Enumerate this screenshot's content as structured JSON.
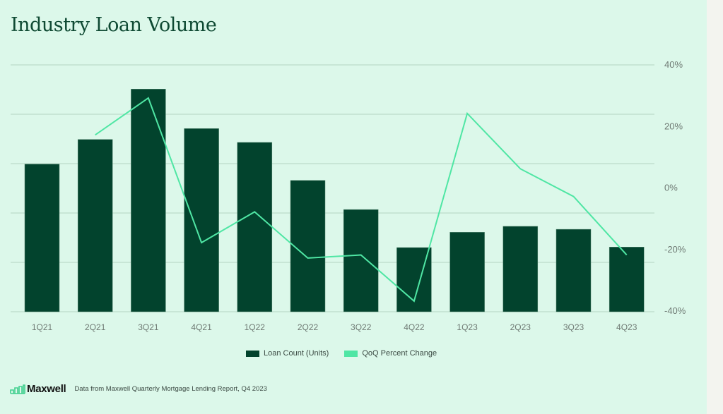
{
  "page": {
    "title": "Industry Loan Volume",
    "colors": {
      "panel_bg": "#dcf8ea",
      "bar": "#02432d",
      "line": "#4fe6a4",
      "grid": "#b3d4c2",
      "axis_text": "#6f7a74"
    }
  },
  "chart_data": {
    "type": "bar+line",
    "title": "Industry Loan Volume",
    "categories": [
      "1Q21",
      "2Q21",
      "3Q21",
      "4Q21",
      "1Q22",
      "2Q22",
      "3Q22",
      "4Q22",
      "1Q23",
      "2Q23",
      "3Q23",
      "4Q23"
    ],
    "series": [
      {
        "name": "Loan Count (Units)",
        "type": "bar",
        "axis": "left",
        "values": [
          2.99,
          3.49,
          4.51,
          3.71,
          3.43,
          2.66,
          2.07,
          1.3,
          1.61,
          1.73,
          1.67,
          1.31
        ],
        "note": "left axis unlabeled; values in relative gridline units"
      },
      {
        "name": "QoQ Percent Change",
        "type": "line",
        "axis": "right",
        "values": [
          null,
          17,
          29,
          -18,
          -8,
          -23,
          -22,
          -37,
          24,
          6,
          -3,
          -22
        ]
      }
    ],
    "left_axis": {
      "ylim": [
        0,
        5
      ],
      "tick_labels": [],
      "gridlines": 6
    },
    "right_axis": {
      "ylim": [
        -40,
        40
      ],
      "tick_labels": [
        "40%",
        "20%",
        "0%",
        "-20%",
        "-40%"
      ]
    },
    "xlabel": "",
    "ylabel": "",
    "grid": true,
    "legend": {
      "position": "bottom-center",
      "entries": [
        "Loan Count (Units)",
        "QoQ Percent Change"
      ]
    }
  },
  "footer": {
    "logo_text": "Maxwell",
    "source": "Data from Maxwell Quarterly Mortgage Lending Report, Q4 2023"
  }
}
